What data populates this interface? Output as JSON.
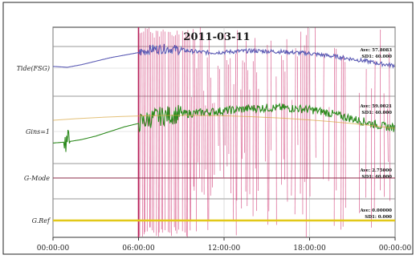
{
  "chart_data": {
    "type": "line",
    "title": "2011-03-11",
    "x_ticks": [
      "00:00:00",
      "06:00:00",
      "12:00:00",
      "18:00:00",
      "00:00:00"
    ],
    "xlim_hours": [
      0,
      24
    ],
    "event_onset_hours": 6.0,
    "grid": true,
    "series": [
      {
        "name": "Tide(FSG)",
        "color": "#5a5ab4",
        "stats": [
          "Ave: 57.8083",
          "SD1: 40.000"
        ],
        "x": [
          0,
          1,
          2,
          3,
          4,
          5,
          6,
          7,
          8,
          9,
          10,
          11,
          12,
          13,
          14,
          15,
          16,
          17,
          18,
          19,
          20,
          21,
          22,
          23,
          24
        ],
        "y": [
          0.54,
          0.52,
          0.58,
          0.66,
          0.74,
          0.8,
          0.86,
          0.94,
          0.95,
          0.92,
          0.88,
          0.86,
          0.87,
          0.89,
          0.9,
          0.89,
          0.88,
          0.86,
          0.84,
          0.8,
          0.76,
          0.71,
          0.66,
          0.6,
          0.56
        ],
        "noisy_after_hours": 6.0
      },
      {
        "name": "Gins=1",
        "color": "#2d8a1e",
        "stats": [
          "Ave: 59.0021",
          "SD1: 40.000"
        ],
        "x": [
          0,
          1,
          2,
          3,
          4,
          5,
          6,
          7,
          8,
          9,
          10,
          11,
          12,
          13,
          14,
          15,
          16,
          17,
          18,
          19,
          20,
          21,
          22,
          23,
          24
        ],
        "y": [
          0.3,
          0.32,
          0.36,
          0.42,
          0.5,
          0.58,
          0.64,
          0.74,
          0.78,
          0.8,
          0.82,
          0.84,
          0.86,
          0.88,
          0.9,
          0.91,
          0.91,
          0.9,
          0.88,
          0.84,
          0.78,
          0.72,
          0.66,
          0.6,
          0.56
        ],
        "noisy_after_hours": 6.0,
        "spike_at_hours": 1.0
      },
      {
        "name": "G-Mode",
        "color": "#8b2b4a",
        "stats": [
          "Ave: 2.75000",
          "SD1: 40.000"
        ],
        "x": [
          0,
          24
        ],
        "y": [
          0.5,
          0.5
        ]
      },
      {
        "name": "G.Ref",
        "color": "#e2c818",
        "stats": [
          "Ave: 0.00000",
          "SD1: 0.000"
        ],
        "x": [
          0,
          24
        ],
        "y": [
          0.5,
          0.5
        ]
      }
    ],
    "overlay": {
      "description_color": "#cc2a6a",
      "start_hours": 6.0,
      "end_hours": 24.0
    },
    "trend_overlay_color": "#d9a640"
  }
}
